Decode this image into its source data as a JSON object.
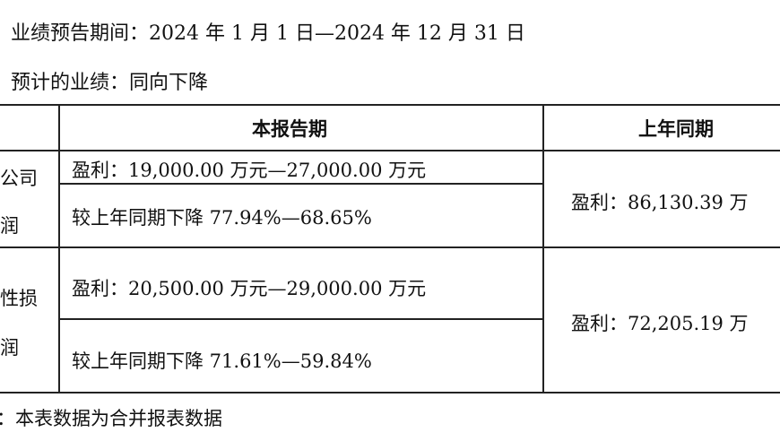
{
  "intro": {
    "period_line": "业绩预告期间：2024 年 1 月 1 日—2024 年 12 月 31 日",
    "forecast_line": "预计的业绩：同向下降"
  },
  "table": {
    "headers": {
      "current": "本报告期",
      "prior": "上年同期"
    },
    "rows": [
      {
        "label_top": "公司",
        "label_bottom": "润",
        "profit_range": "盈利：19,000.00 万元—27,000.00 万元",
        "change": "较上年同期下降 77.94%—68.65%",
        "prior": "盈利：86,130.39 万"
      },
      {
        "label_top": "性损",
        "label_bottom": "润",
        "profit_range": "盈利：20,500.00 万元—29,000.00 万元",
        "change": "较上年同期下降 71.61%—59.84%",
        "prior": "盈利：72,205.19 万"
      }
    ]
  },
  "note": "：本表数据为合并报表数据"
}
